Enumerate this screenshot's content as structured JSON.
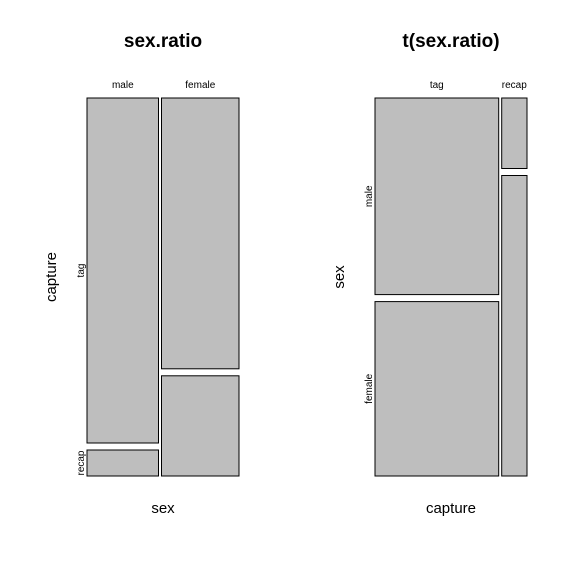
{
  "colors": {
    "tile_fill": "#bebebe",
    "tile_stroke": "#000000",
    "background": "#ffffff"
  },
  "chart_data": [
    {
      "type": "mosaic",
      "title": "sex.ratio",
      "xlabel": "sex",
      "ylabel": "capture",
      "x_categories": [
        "male",
        "female"
      ],
      "y_categories": [
        "tag",
        "recap"
      ],
      "column_proportions": [
        0.48,
        0.52
      ],
      "cells": [
        {
          "x": "male",
          "y": "tag",
          "proportion_within_column": 0.93
        },
        {
          "x": "male",
          "y": "recap",
          "proportion_within_column": 0.07
        },
        {
          "x": "female",
          "y": "tag",
          "proportion_within_column": 0.73
        },
        {
          "x": "female",
          "y": "recap",
          "proportion_within_column": 0.27
        }
      ]
    },
    {
      "type": "mosaic",
      "title": "t(sex.ratio)",
      "xlabel": "capture",
      "ylabel": "sex",
      "x_categories": [
        "tag",
        "recap"
      ],
      "y_categories": [
        "male",
        "female"
      ],
      "column_proportions": [
        0.83,
        0.17
      ],
      "cells": [
        {
          "x": "tag",
          "y": "male",
          "proportion_within_column": 0.53
        },
        {
          "x": "tag",
          "y": "female",
          "proportion_within_column": 0.47
        },
        {
          "x": "recap",
          "y": "male",
          "proportion_within_column": 0.19
        },
        {
          "x": "recap",
          "y": "female",
          "proportion_within_column": 0.81
        }
      ]
    }
  ]
}
